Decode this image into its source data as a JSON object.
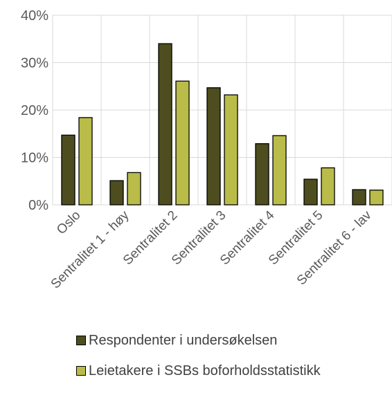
{
  "chart_data": {
    "type": "bar",
    "categories": [
      "Oslo",
      "Sentralitet 1 - høy",
      "Sentralitet 2",
      "Sentralitet 3",
      "Sentralitet 4",
      "Sentralitet 5",
      "Sentralitet 6 - lav"
    ],
    "series": [
      {
        "name": "Respondenter i undersøkelsen",
        "color": "#4d4d1f",
        "values": [
          14.7,
          5.1,
          34.0,
          24.7,
          12.9,
          5.4,
          3.2
        ]
      },
      {
        "name": "Leietakere i SSBs boforholdsstatistikk",
        "color": "#b9bc49",
        "values": [
          18.4,
          6.8,
          26.1,
          23.2,
          14.6,
          7.8,
          3.1
        ]
      }
    ],
    "yticks": [
      "0%",
      "10%",
      "20%",
      "30%",
      "40%"
    ],
    "ylim": [
      0,
      40
    ],
    "grid": true,
    "legend_position": "bottom"
  }
}
